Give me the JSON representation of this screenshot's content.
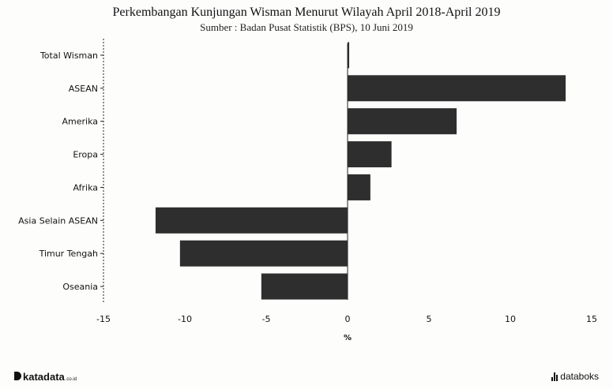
{
  "title": "Perkembangan Kunjungan Wisman Menurut Wilayah April 2018-April 2019",
  "subtitle": "Sumber : Badan Pusat Statistik (BPS), 10 Juni 2019",
  "footer": {
    "brand_left": "katadata",
    "brand_left_suffix": ".co.id",
    "brand_right": "databoks"
  },
  "colors": {
    "bar": "#2e2e2e",
    "axis": "#222222"
  },
  "chart_data": {
    "type": "bar",
    "orientation": "horizontal",
    "categories": [
      "Total Wisman",
      "ASEAN",
      "Amerika",
      "Eropa",
      "Afrika",
      "Asia Selain ASEAN",
      "Timur Tengah",
      "Oseania"
    ],
    "values": [
      0.1,
      13.4,
      6.7,
      2.7,
      1.4,
      -11.8,
      -10.3,
      -5.3
    ],
    "xlim": [
      -15,
      15
    ],
    "xticks": [
      -15,
      -10,
      -5,
      0,
      5,
      10,
      15
    ],
    "xlabel": "%",
    "ylabel": "",
    "grid": false,
    "legend": "none"
  }
}
